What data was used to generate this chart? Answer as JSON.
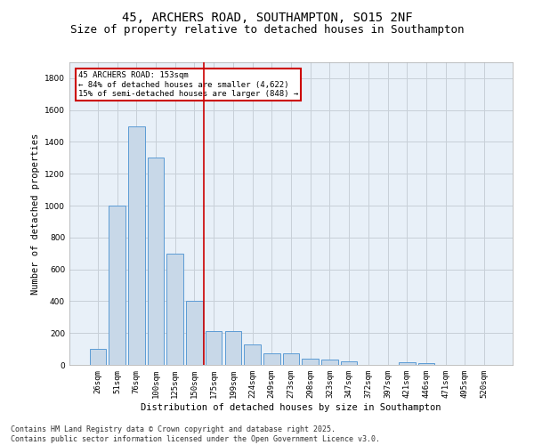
{
  "title1": "45, ARCHERS ROAD, SOUTHAMPTON, SO15 2NF",
  "title2": "Size of property relative to detached houses in Southampton",
  "xlabel": "Distribution of detached houses by size in Southampton",
  "ylabel": "Number of detached properties",
  "categories": [
    "26sqm",
    "51sqm",
    "76sqm",
    "100sqm",
    "125sqm",
    "150sqm",
    "175sqm",
    "199sqm",
    "224sqm",
    "249sqm",
    "273sqm",
    "298sqm",
    "323sqm",
    "347sqm",
    "372sqm",
    "397sqm",
    "421sqm",
    "446sqm",
    "471sqm",
    "495sqm",
    "520sqm"
  ],
  "values": [
    100,
    1000,
    1500,
    1300,
    700,
    400,
    210,
    210,
    130,
    70,
    70,
    40,
    35,
    25,
    0,
    0,
    15,
    10,
    0,
    0,
    0
  ],
  "bar_color": "#c8d8e8",
  "bar_edge_color": "#5b9bd5",
  "vline_x_index": 5.5,
  "annotation_text_line1": "45 ARCHERS ROAD: 153sqm",
  "annotation_text_line2": "← 84% of detached houses are smaller (4,622)",
  "annotation_text_line3": "15% of semi-detached houses are larger (848) →",
  "annotation_box_facecolor": "#ffffff",
  "annotation_box_edgecolor": "#cc0000",
  "vline_color": "#cc0000",
  "ylim": [
    0,
    1900
  ],
  "yticks": [
    0,
    200,
    400,
    600,
    800,
    1000,
    1200,
    1400,
    1600,
    1800
  ],
  "grid_color": "#c8d0d8",
  "bg_color": "#e8f0f8",
  "footer_line1": "Contains HM Land Registry data © Crown copyright and database right 2025.",
  "footer_line2": "Contains public sector information licensed under the Open Government Licence v3.0.",
  "title_fontsize": 10,
  "subtitle_fontsize": 9,
  "label_fontsize": 7.5,
  "tick_fontsize": 6.5,
  "annot_fontsize": 6.5,
  "footer_fontsize": 6
}
